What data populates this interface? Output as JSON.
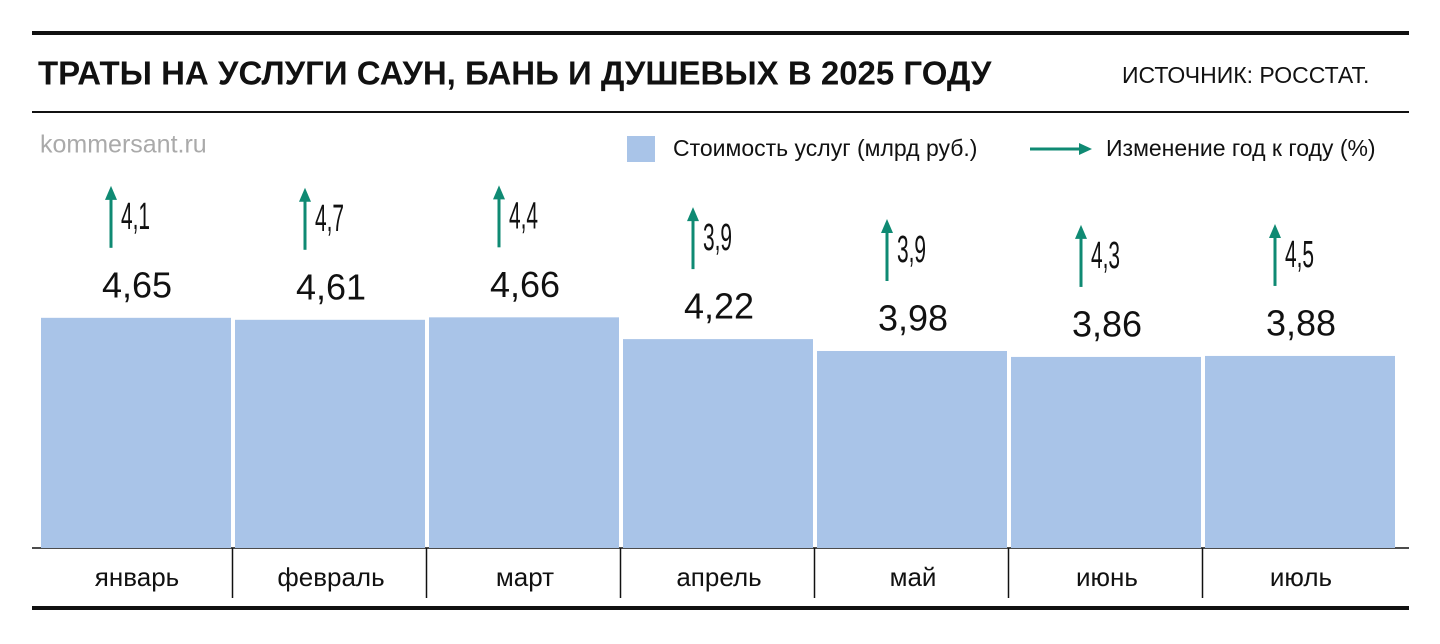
{
  "chart_data": {
    "type": "bar",
    "title": "ТРАТЫ НА УСЛУГИ САУН, БАНЬ И ДУШЕВЫХ В 2025 ГОДУ",
    "source": "ИСТОЧНИК: РОССТАТ.",
    "watermark": "kommersant.ru",
    "categories": [
      "январь",
      "февраль",
      "март",
      "апрель",
      "май",
      "июнь",
      "июль"
    ],
    "series": [
      {
        "name": "Стоимость услуг (млрд руб.)",
        "color": "#a9c4e8",
        "values": [
          4.65,
          4.61,
          4.66,
          4.22,
          3.98,
          3.86,
          3.88
        ],
        "value_labels": [
          "4,65",
          "4,61",
          "4,66",
          "4,22",
          "3,98",
          "3,86",
          "3,88"
        ]
      },
      {
        "name": "Изменение год к году (%)",
        "color": "#0f8a73",
        "values": [
          4.1,
          4.7,
          4.4,
          3.9,
          3.9,
          4.3,
          4.5
        ],
        "value_labels": [
          "4,1",
          "4,7",
          "4,4",
          "3,9",
          "3,9",
          "4,3",
          "4,5"
        ]
      }
    ]
  }
}
